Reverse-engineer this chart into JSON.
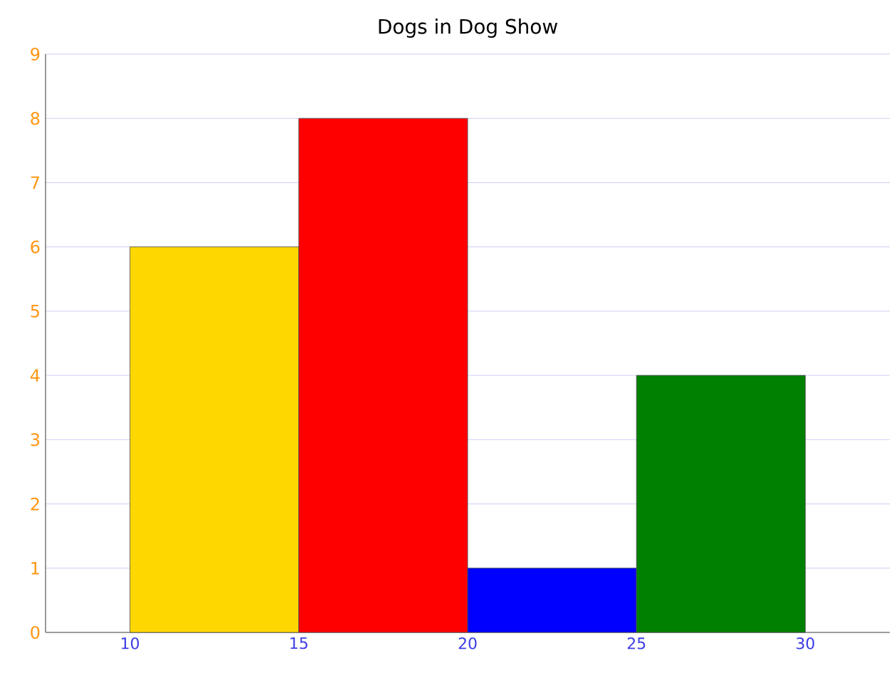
{
  "chart_data": {
    "type": "histogram",
    "title": "Dogs in Dog Show",
    "bins": [
      10,
      15,
      20,
      25,
      30
    ],
    "values": [
      6,
      8,
      1,
      4
    ],
    "colors": [
      "#ffd700",
      "#ff0000",
      "#0000ff",
      "#008000"
    ],
    "xlim": [
      7.5,
      32.5
    ],
    "xticks": [
      10,
      15,
      20,
      25,
      30
    ],
    "ylim": [
      0,
      9
    ],
    "yticks": [
      0,
      1,
      2,
      3,
      4,
      5,
      6,
      7,
      8,
      9
    ],
    "grid": "y"
  }
}
